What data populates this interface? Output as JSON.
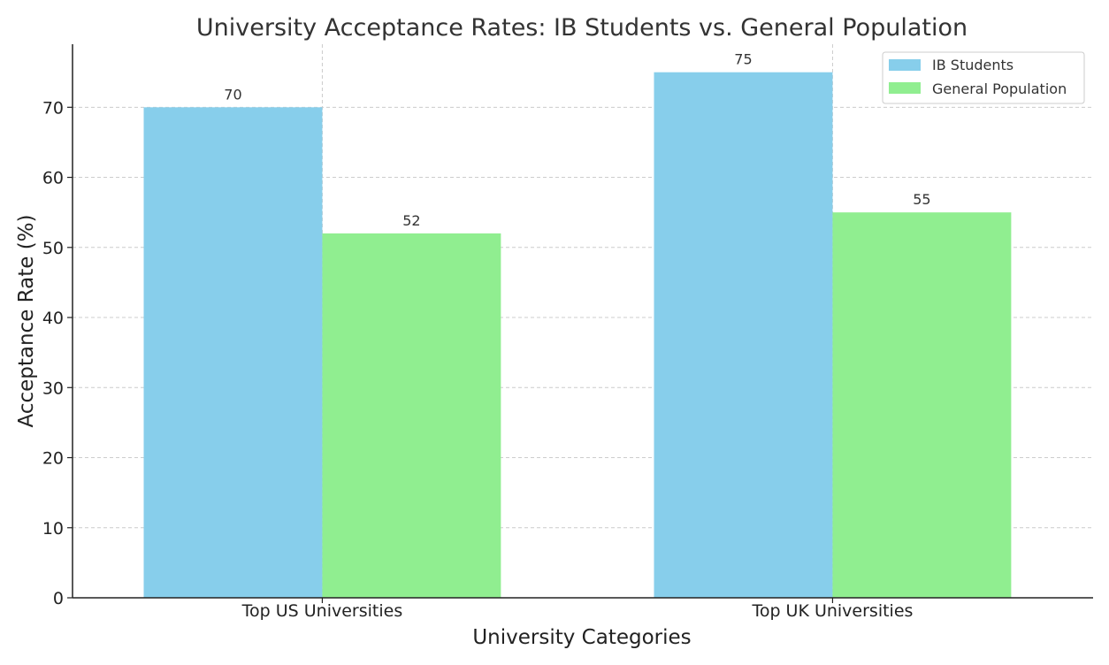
{
  "chart_data": {
    "type": "bar",
    "title": "University Acceptance Rates: IB Students vs. General Population",
    "xlabel": "University Categories",
    "ylabel": "Acceptance Rate (%)",
    "categories": [
      "Top US Universities",
      "Top UK Universities"
    ],
    "series": [
      {
        "name": "IB Students",
        "values": [
          70,
          75
        ],
        "color": "#87ceeb"
      },
      {
        "name": "General Population",
        "values": [
          52,
          55
        ],
        "color": "#90ee90"
      }
    ],
    "ylim": [
      0,
      79
    ],
    "yticks": [
      0,
      10,
      20,
      30,
      40,
      50,
      60,
      70
    ],
    "grid": true,
    "legend": "top-right"
  }
}
